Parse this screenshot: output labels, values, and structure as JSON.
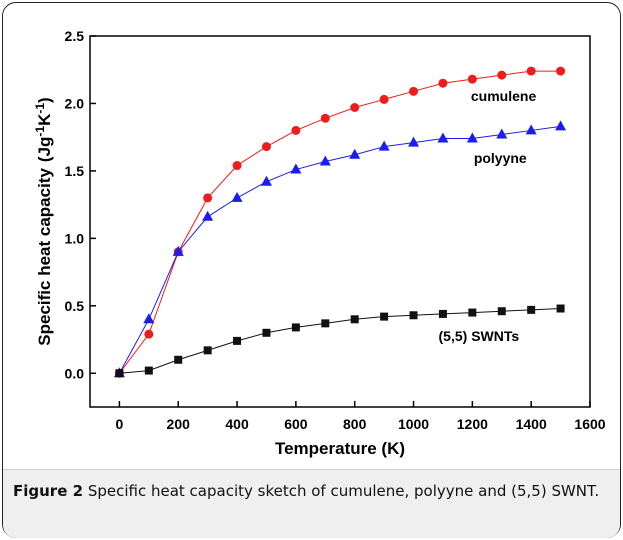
{
  "figure": {
    "caption_label": "Figure 2",
    "caption_text": " Specific heat capacity sketch of cumulene, polyyne and (5,5) SWNT",
    "caption_end": "."
  },
  "chart_data": {
    "type": "line",
    "title": "",
    "xlabel": "Temperature (K)",
    "ylabel": "Specific heat capacity",
    "ylabel_units": {
      "open": "(Jg",
      "exp1": "-1",
      "mid": "K",
      "exp2": "-1",
      "close": ")"
    },
    "xlim": [
      -100,
      1600
    ],
    "ylim": [
      -0.25,
      2.5
    ],
    "x_ticks": [
      0,
      200,
      400,
      600,
      800,
      1000,
      1200,
      1400,
      1600
    ],
    "y_ticks": [
      0.0,
      0.5,
      1.0,
      1.5,
      2.0,
      2.5
    ],
    "x_tick_labels": [
      "0",
      "200",
      "400",
      "600",
      "800",
      "1000",
      "1200",
      "1400",
      "1600"
    ],
    "y_tick_labels": [
      "0.0",
      "0.5",
      "1.0",
      "1.5",
      "2.0",
      "2.5"
    ],
    "grid": false,
    "x": [
      0,
      100,
      200,
      300,
      400,
      500,
      600,
      700,
      800,
      900,
      1000,
      1100,
      1200,
      1300,
      1400,
      1500
    ],
    "series": [
      {
        "name": "cumulene",
        "marker": "circle",
        "color": "#ee1c1c",
        "values": [
          0.0,
          0.29,
          0.9,
          1.3,
          1.54,
          1.68,
          1.8,
          1.89,
          1.97,
          2.03,
          2.09,
          2.15,
          2.18,
          2.21,
          2.24,
          2.24
        ]
      },
      {
        "name": "polyyne",
        "marker": "triangle",
        "color": "#1c1cee",
        "values": [
          0.0,
          0.4,
          0.9,
          1.16,
          1.3,
          1.42,
          1.51,
          1.57,
          1.62,
          1.68,
          1.71,
          1.74,
          1.74,
          1.77,
          1.8,
          1.83
        ]
      },
      {
        "name": "(5,5) SWNTs",
        "marker": "square",
        "color": "#111111",
        "values": [
          0.0,
          0.02,
          0.1,
          0.17,
          0.24,
          0.3,
          0.34,
          0.37,
          0.4,
          0.42,
          0.43,
          0.44,
          0.45,
          0.46,
          0.47,
          0.48
        ]
      }
    ]
  }
}
